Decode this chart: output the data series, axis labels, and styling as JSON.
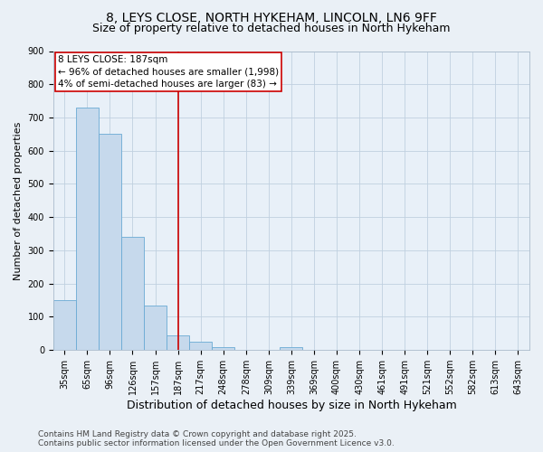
{
  "title1": "8, LEYS CLOSE, NORTH HYKEHAM, LINCOLN, LN6 9FF",
  "title2": "Size of property relative to detached houses in North Hykeham",
  "xlabel": "Distribution of detached houses by size in North Hykeham",
  "ylabel": "Number of detached properties",
  "categories": [
    "35sqm",
    "65sqm",
    "96sqm",
    "126sqm",
    "157sqm",
    "187sqm",
    "217sqm",
    "248sqm",
    "278sqm",
    "309sqm",
    "339sqm",
    "369sqm",
    "400sqm",
    "430sqm",
    "461sqm",
    "491sqm",
    "521sqm",
    "552sqm",
    "582sqm",
    "613sqm",
    "643sqm"
  ],
  "values": [
    150,
    730,
    650,
    340,
    135,
    45,
    25,
    10,
    0,
    0,
    8,
    0,
    0,
    0,
    0,
    0,
    0,
    0,
    0,
    0,
    0
  ],
  "bar_color": "#c6d9ec",
  "bar_edge_color": "#6aaad4",
  "highlight_index": 5,
  "annotation_title": "8 LEYS CLOSE: 187sqm",
  "annotation_line1": "← 96% of detached houses are smaller (1,998)",
  "annotation_line2": "4% of semi-detached houses are larger (83) →",
  "annotation_box_color": "#ffffff",
  "annotation_box_edge": "#cc0000",
  "red_line_color": "#cc0000",
  "footer1": "Contains HM Land Registry data © Crown copyright and database right 2025.",
  "footer2": "Contains public sector information licensed under the Open Government Licence v3.0.",
  "bg_color": "#eaf0f6",
  "plot_bg_color": "#e8f0f8",
  "ylim": [
    0,
    900
  ],
  "yticks": [
    0,
    100,
    200,
    300,
    400,
    500,
    600,
    700,
    800,
    900
  ],
  "grid_color": "#c0d0e0",
  "title1_fontsize": 10,
  "title2_fontsize": 9,
  "xlabel_fontsize": 9,
  "ylabel_fontsize": 8,
  "tick_fontsize": 7,
  "annotation_fontsize": 7.5,
  "footer_fontsize": 6.5
}
